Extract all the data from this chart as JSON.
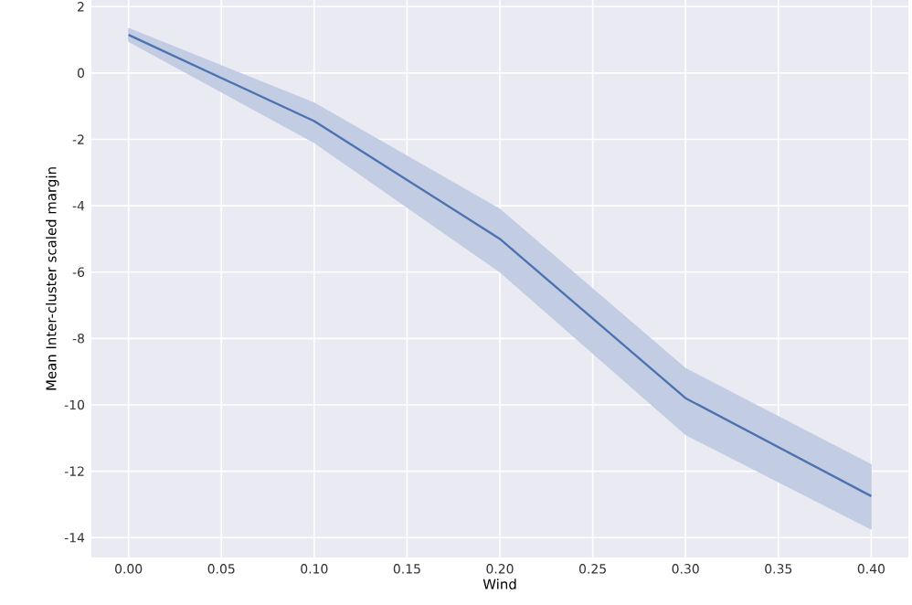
{
  "chart_data": {
    "type": "line",
    "xlabel": "Wind",
    "ylabel": "Mean Inter-cluster scaled margin",
    "x": [
      0.0,
      0.1,
      0.2,
      0.3,
      0.4
    ],
    "series": [
      {
        "color": "#4c72b0",
        "values": [
          1.15,
          -1.45,
          -5.0,
          -9.8,
          -12.75
        ],
        "lower": [
          0.95,
          -2.1,
          -6.0,
          -10.9,
          -13.75
        ],
        "upper": [
          1.35,
          -0.9,
          -4.1,
          -8.9,
          -11.8
        ]
      }
    ],
    "xlim": [
      -0.02,
      0.42
    ],
    "ylim": [
      -14.6,
      2.2
    ],
    "xticks": [
      {
        "value": 0,
        "label": "0.00"
      },
      {
        "value": 0.05,
        "label": "0.05"
      },
      {
        "value": 0.1,
        "label": "0.10"
      },
      {
        "value": 0.15,
        "label": "0.15"
      },
      {
        "value": 0.2,
        "label": "0.20"
      },
      {
        "value": 0.25,
        "label": "0.25"
      },
      {
        "value": 0.3,
        "label": "0.30"
      },
      {
        "value": 0.35,
        "label": "0.35"
      },
      {
        "value": 0.4,
        "label": "0.40"
      }
    ],
    "yticks": [
      -14,
      -12,
      -10,
      -8,
      -6,
      -4,
      -2,
      0,
      2
    ],
    "grid": true,
    "marker": "none",
    "line_style": "solid"
  }
}
